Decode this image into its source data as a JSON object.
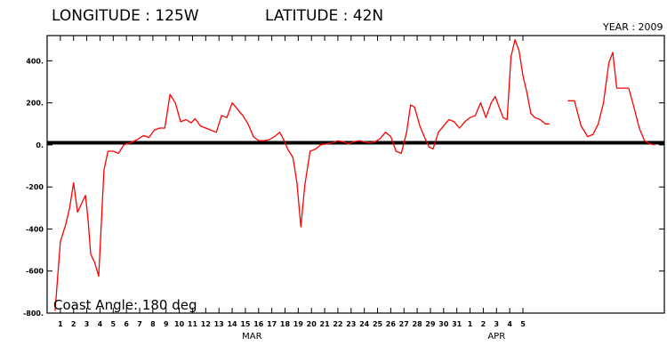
{
  "header": {
    "longitude": "LONGITUDE : 125W",
    "latitude": "LATITUDE : 42N",
    "year": "YEAR : 2009"
  },
  "annotation": "Coast Angle: 180 deg",
  "chart_data": {
    "type": "line",
    "title": "",
    "xlabel": "",
    "ylabel": "",
    "ylim": [
      -800,
      520
    ],
    "yticks": [
      400,
      200,
      0,
      -200,
      -400,
      -600,
      -800
    ],
    "ytick_labels": [
      "400.",
      "200.",
      "0.",
      "-200",
      "-400",
      "-600",
      "-800."
    ],
    "xticks": [
      {
        "day": 1,
        "label": "1"
      },
      {
        "day": 2,
        "label": "2"
      },
      {
        "day": 3,
        "label": "3"
      },
      {
        "day": 4,
        "label": "4"
      },
      {
        "day": 5,
        "label": "5"
      },
      {
        "day": 6,
        "label": "6"
      },
      {
        "day": 7,
        "label": "7"
      },
      {
        "day": 8,
        "label": "8"
      },
      {
        "day": 9,
        "label": "9"
      },
      {
        "day": 10,
        "label": "10"
      },
      {
        "day": 11,
        "label": "11"
      },
      {
        "day": 12,
        "label": "12"
      },
      {
        "day": 13,
        "label": "13"
      },
      {
        "day": 14,
        "label": "14"
      },
      {
        "day": 15,
        "label": "15"
      },
      {
        "day": 16,
        "label": "16"
      },
      {
        "day": 17,
        "label": "17"
      },
      {
        "day": 18,
        "label": "18"
      },
      {
        "day": 19,
        "label": "19"
      },
      {
        "day": 20,
        "label": "20"
      },
      {
        "day": 21,
        "label": "21"
      },
      {
        "day": 22,
        "label": "22"
      },
      {
        "day": 23,
        "label": "23"
      },
      {
        "day": 24,
        "label": "24"
      },
      {
        "day": 25,
        "label": "25"
      },
      {
        "day": 26,
        "label": "26"
      },
      {
        "day": 27,
        "label": "27"
      },
      {
        "day": 28,
        "label": "28"
      },
      {
        "day": 29,
        "label": "29"
      },
      {
        "day": 30,
        "label": "30"
      },
      {
        "day": 31,
        "label": "31"
      },
      {
        "day": 32,
        "label": "1"
      },
      {
        "day": 33,
        "label": "2"
      },
      {
        "day": 34,
        "label": "3"
      },
      {
        "day": 35,
        "label": "4"
      },
      {
        "day": 36,
        "label": "5"
      }
    ],
    "month_labels": [
      {
        "label": "MAR",
        "day": 15.5
      },
      {
        "label": "APR",
        "day": 34
      }
    ],
    "reference_line": {
      "y": 10,
      "color": "#000000"
    },
    "series_color": "#ff0000",
    "series": [
      {
        "segments": [
          [
            [
              0.6,
              -790
            ],
            [
              1,
              -460
            ],
            [
              1.4,
              -380
            ],
            [
              1.7,
              -300
            ],
            [
              2.0,
              -180
            ],
            [
              2.3,
              -320
            ],
            [
              2.6,
              -280
            ],
            [
              2.9,
              -240
            ],
            [
              3.1,
              -360
            ],
            [
              3.3,
              -520
            ],
            [
              3.6,
              -560
            ],
            [
              3.9,
              -625
            ],
            [
              4.3,
              -120
            ],
            [
              4.6,
              -30
            ],
            [
              5.0,
              -30
            ],
            [
              5.4,
              -40
            ],
            [
              5.8,
              0
            ],
            [
              6.3,
              10
            ],
            [
              6.8,
              25
            ],
            [
              7.3,
              45
            ],
            [
              7.7,
              35
            ],
            [
              8.1,
              70
            ],
            [
              8.5,
              80
            ],
            [
              8.9,
              80
            ],
            [
              9.3,
              240
            ],
            [
              9.7,
              200
            ],
            [
              10.1,
              110
            ],
            [
              10.5,
              120
            ],
            [
              10.9,
              105
            ],
            [
              11.2,
              125
            ],
            [
              11.6,
              90
            ],
            [
              12.0,
              80
            ],
            [
              12.4,
              70
            ],
            [
              12.8,
              60
            ],
            [
              13.2,
              140
            ],
            [
              13.6,
              130
            ],
            [
              14.0,
              200
            ],
            [
              14.4,
              170
            ],
            [
              14.8,
              140
            ],
            [
              15.2,
              100
            ],
            [
              15.6,
              40
            ],
            [
              16.0,
              20
            ],
            [
              16.4,
              20
            ],
            [
              16.8,
              25
            ],
            [
              17.2,
              40
            ],
            [
              17.6,
              60
            ],
            [
              17.9,
              25
            ],
            [
              18.2,
              -20
            ],
            [
              18.6,
              -60
            ],
            [
              18.9,
              -180
            ],
            [
              19.2,
              -390
            ],
            [
              19.5,
              -190
            ],
            [
              19.9,
              -30
            ],
            [
              20.3,
              -20
            ],
            [
              20.7,
              0
            ],
            [
              21.2,
              5
            ],
            [
              21.6,
              10
            ],
            [
              22.0,
              20
            ],
            [
              22.4,
              15
            ],
            [
              22.8,
              5
            ],
            [
              23.2,
              15
            ],
            [
              23.6,
              20
            ],
            [
              24.0,
              15
            ],
            [
              24.4,
              10
            ],
            [
              24.8,
              15
            ],
            [
              25.2,
              30
            ],
            [
              25.6,
              60
            ],
            [
              26.0,
              40
            ],
            [
              26.4,
              -30
            ],
            [
              26.8,
              -40
            ],
            [
              27.2,
              60
            ],
            [
              27.5,
              190
            ],
            [
              27.8,
              180
            ],
            [
              28.2,
              90
            ],
            [
              28.6,
              30
            ],
            [
              28.9,
              -10
            ],
            [
              29.2,
              -20
            ],
            [
              29.6,
              60
            ],
            [
              30.0,
              90
            ],
            [
              30.4,
              120
            ],
            [
              30.8,
              110
            ],
            [
              31.2,
              80
            ],
            [
              31.6,
              110
            ],
            [
              32.0,
              130
            ],
            [
              32.4,
              140
            ],
            [
              32.8,
              200
            ],
            [
              33.2,
              130
            ],
            [
              33.6,
              200
            ],
            [
              33.9,
              230
            ],
            [
              34.2,
              180
            ],
            [
              34.5,
              130
            ],
            [
              34.8,
              120
            ],
            [
              35.1,
              420
            ],
            [
              35.4,
              500
            ],
            [
              35.7,
              450
            ],
            [
              36.0,
              330
            ],
            [
              36.3,
              250
            ],
            [
              36.6,
              150
            ],
            [
              36.9,
              130
            ],
            [
              37.3,
              120
            ],
            [
              37.7,
              100
            ],
            [
              38.0,
              100
            ]
          ],
          [
            [
              39.4,
              210
            ],
            [
              39.9,
              210
            ],
            [
              40.4,
              90
            ],
            [
              40.9,
              40
            ],
            [
              41.3,
              50
            ],
            [
              41.7,
              100
            ],
            [
              42.1,
              200
            ],
            [
              42.5,
              390
            ],
            [
              42.8,
              440
            ],
            [
              43.1,
              270
            ],
            [
              43.5,
              270
            ],
            [
              44.0,
              270
            ],
            [
              44.4,
              180
            ],
            [
              44.8,
              80
            ],
            [
              45.2,
              20
            ],
            [
              45.6,
              5
            ],
            [
              46.0,
              0
            ]
          ]
        ]
      }
    ]
  }
}
